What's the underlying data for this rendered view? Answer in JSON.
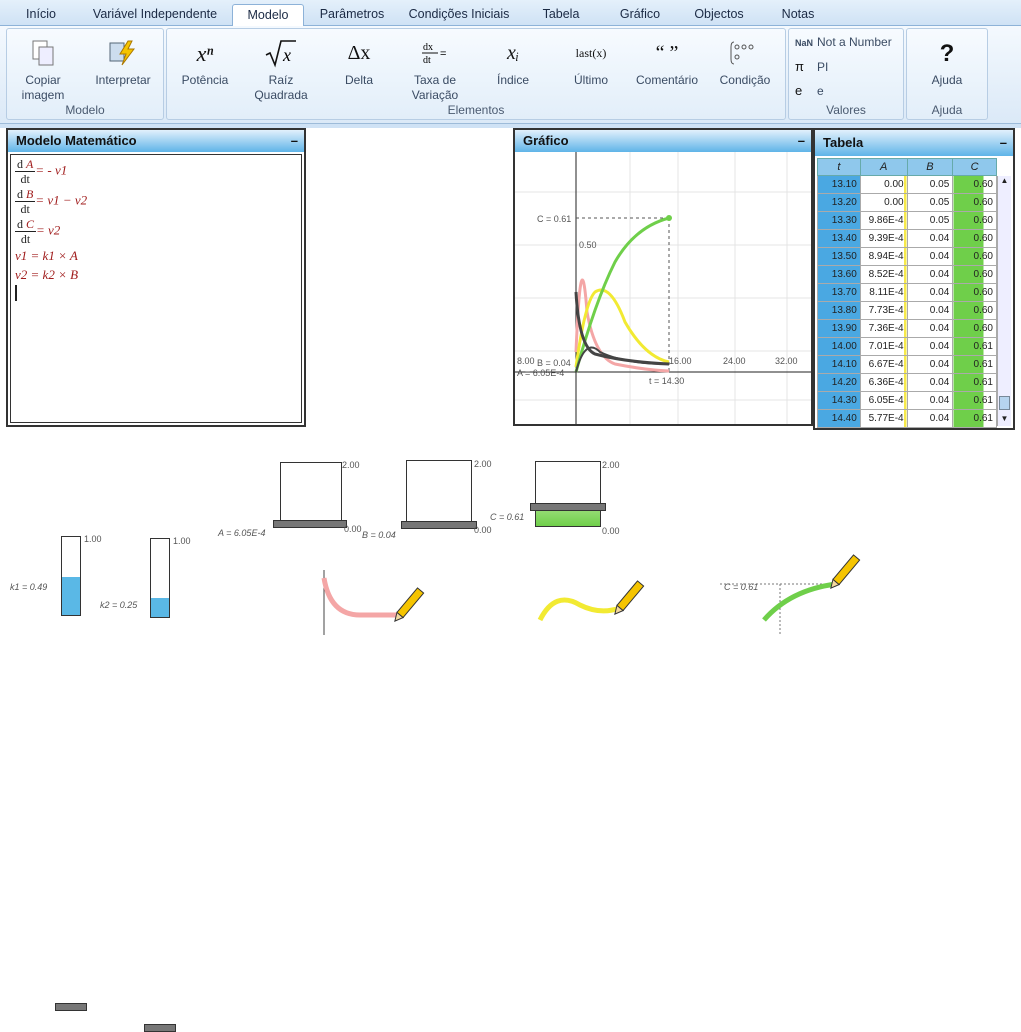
{
  "tabs": [
    "Início",
    "Variável Independente",
    "Modelo",
    "Parâmetros",
    "Condições Iniciais",
    "Tabela",
    "Gráfico",
    "Objectos",
    "Notas"
  ],
  "ribbon": {
    "copiar_l1": "Copiar",
    "copiar_l2": "imagem",
    "interpretar": "Interpretar",
    "group_modelo": "Modelo",
    "potencia": "Potência",
    "raiz_l1": "Raíz",
    "raiz_l2": "Quadrada",
    "delta": "Delta",
    "taxa_l1": "Taxa de",
    "taxa_l2": "Variação",
    "indice": "Índice",
    "ultimo": "Último",
    "comentario": "Comentário",
    "condicao": "Condição",
    "group_elementos": "Elementos",
    "nan_sym": "NaN",
    "nan_label": "Not a Number",
    "pi_sym": "π",
    "pi_label": "PI",
    "e_sym": "e",
    "e_label": "e",
    "group_valores": "Valores",
    "ajuda_sym": "?",
    "ajuda": "Ajuda",
    "group_ajuda": "Ajuda",
    "icon_xn": "xⁿ",
    "icon_delta": "Δx",
    "icon_last": "last(x)",
    "icon_quote": "“ ”",
    "icon_xi": "xᵢ"
  },
  "model": {
    "title": "Modelo Matemático",
    "minimize": "–",
    "eqs": [
      {
        "d": "d",
        "var": "A",
        "dt": "dt",
        "rhs": "= - v1"
      },
      {
        "d": "d",
        "var": "B",
        "dt": "dt",
        "rhs": "= v1 − v2"
      },
      {
        "d": "d",
        "var": "C",
        "dt": "dt",
        "rhs": "= v2"
      }
    ],
    "v1": "v1 = k1 × A",
    "v2": "v2 = k2 × B"
  },
  "graph": {
    "title": "Gráfico",
    "minimize": "–",
    "c_label": "C = 0.61",
    "half": "0.50",
    "b_label": "B = 0.04",
    "a_label": "A = 6.05E-4",
    "t_label": "t = 14.30",
    "ticks": [
      "8.00",
      "16.00",
      "24.00",
      "32.00"
    ]
  },
  "table": {
    "title": "Tabela",
    "minimize": "–",
    "headers": [
      "t",
      "A",
      "B",
      "C"
    ],
    "rows": [
      [
        "13.10",
        "0.00",
        "0.05",
        "0.60"
      ],
      [
        "13.20",
        "0.00",
        "0.05",
        "0.60"
      ],
      [
        "13.30",
        "9.86E-4",
        "0.05",
        "0.60"
      ],
      [
        "13.40",
        "9.39E-4",
        "0.04",
        "0.60"
      ],
      [
        "13.50",
        "8.94E-4",
        "0.04",
        "0.60"
      ],
      [
        "13.60",
        "8.52E-4",
        "0.04",
        "0.60"
      ],
      [
        "13.70",
        "8.11E-4",
        "0.04",
        "0.60"
      ],
      [
        "13.80",
        "7.73E-4",
        "0.04",
        "0.60"
      ],
      [
        "13.90",
        "7.36E-4",
        "0.04",
        "0.60"
      ],
      [
        "14.00",
        "7.01E-4",
        "0.04",
        "0.61"
      ],
      [
        "14.10",
        "6.67E-4",
        "0.04",
        "0.61"
      ],
      [
        "14.20",
        "6.36E-4",
        "0.04",
        "0.61"
      ],
      [
        "14.30",
        "6.05E-4",
        "0.04",
        "0.61"
      ],
      [
        "14.40",
        "5.77E-4",
        "0.04",
        "0.61"
      ]
    ]
  },
  "objects": {
    "a_max": "2.00",
    "a_min": "0.00",
    "a_label": "A = 6.05E-4",
    "b_max": "2.00",
    "b_min": "0.00",
    "b_label": "B = 0.04",
    "c_max": "2.00",
    "c_min": "0.00",
    "c_label": "C = 0.61",
    "c_fill": 0.305,
    "k1_max": "1.00",
    "k1_label": "k1 = 0.49",
    "k1_value": 0.49,
    "k2_max": "1.00",
    "k2_label": "k2 = 0.25",
    "k2_value": 0.25,
    "c_graph_label": "C = 0.61"
  },
  "colors": {
    "A": "#f4a6a6",
    "B": "#f2ea32",
    "C": "#6fcf4a",
    "other": "#444444"
  }
}
